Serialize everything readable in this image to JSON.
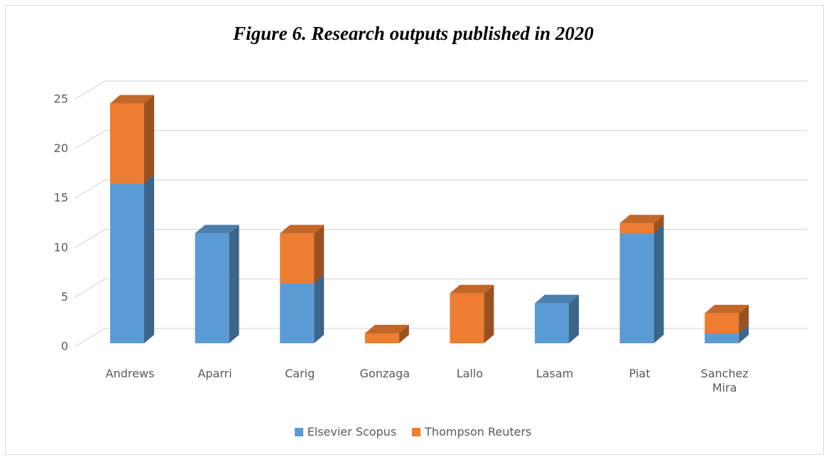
{
  "chart_data": {
    "type": "bar3d_stacked",
    "title": "Figure 6. Research outputs published in 2020",
    "categories": [
      "Andrews",
      "Aparri",
      "Carig",
      "Gonzaga",
      "Lallo",
      "Lasam",
      "Piat",
      "Sanchez Mira"
    ],
    "series": [
      {
        "name": "Elsevier Scopus",
        "color": "#5b9bd5",
        "values": [
          16,
          11,
          6,
          0,
          0,
          4,
          11,
          1
        ]
      },
      {
        "name": "Thompson Reuters",
        "color": "#ed7d31",
        "values": [
          8,
          0,
          5,
          1,
          5,
          0,
          1,
          2
        ]
      }
    ],
    "ylim": [
      0,
      25
    ],
    "yticks": [
      0,
      5,
      10,
      15,
      20,
      25
    ],
    "grid": true,
    "legend": "bottom"
  }
}
